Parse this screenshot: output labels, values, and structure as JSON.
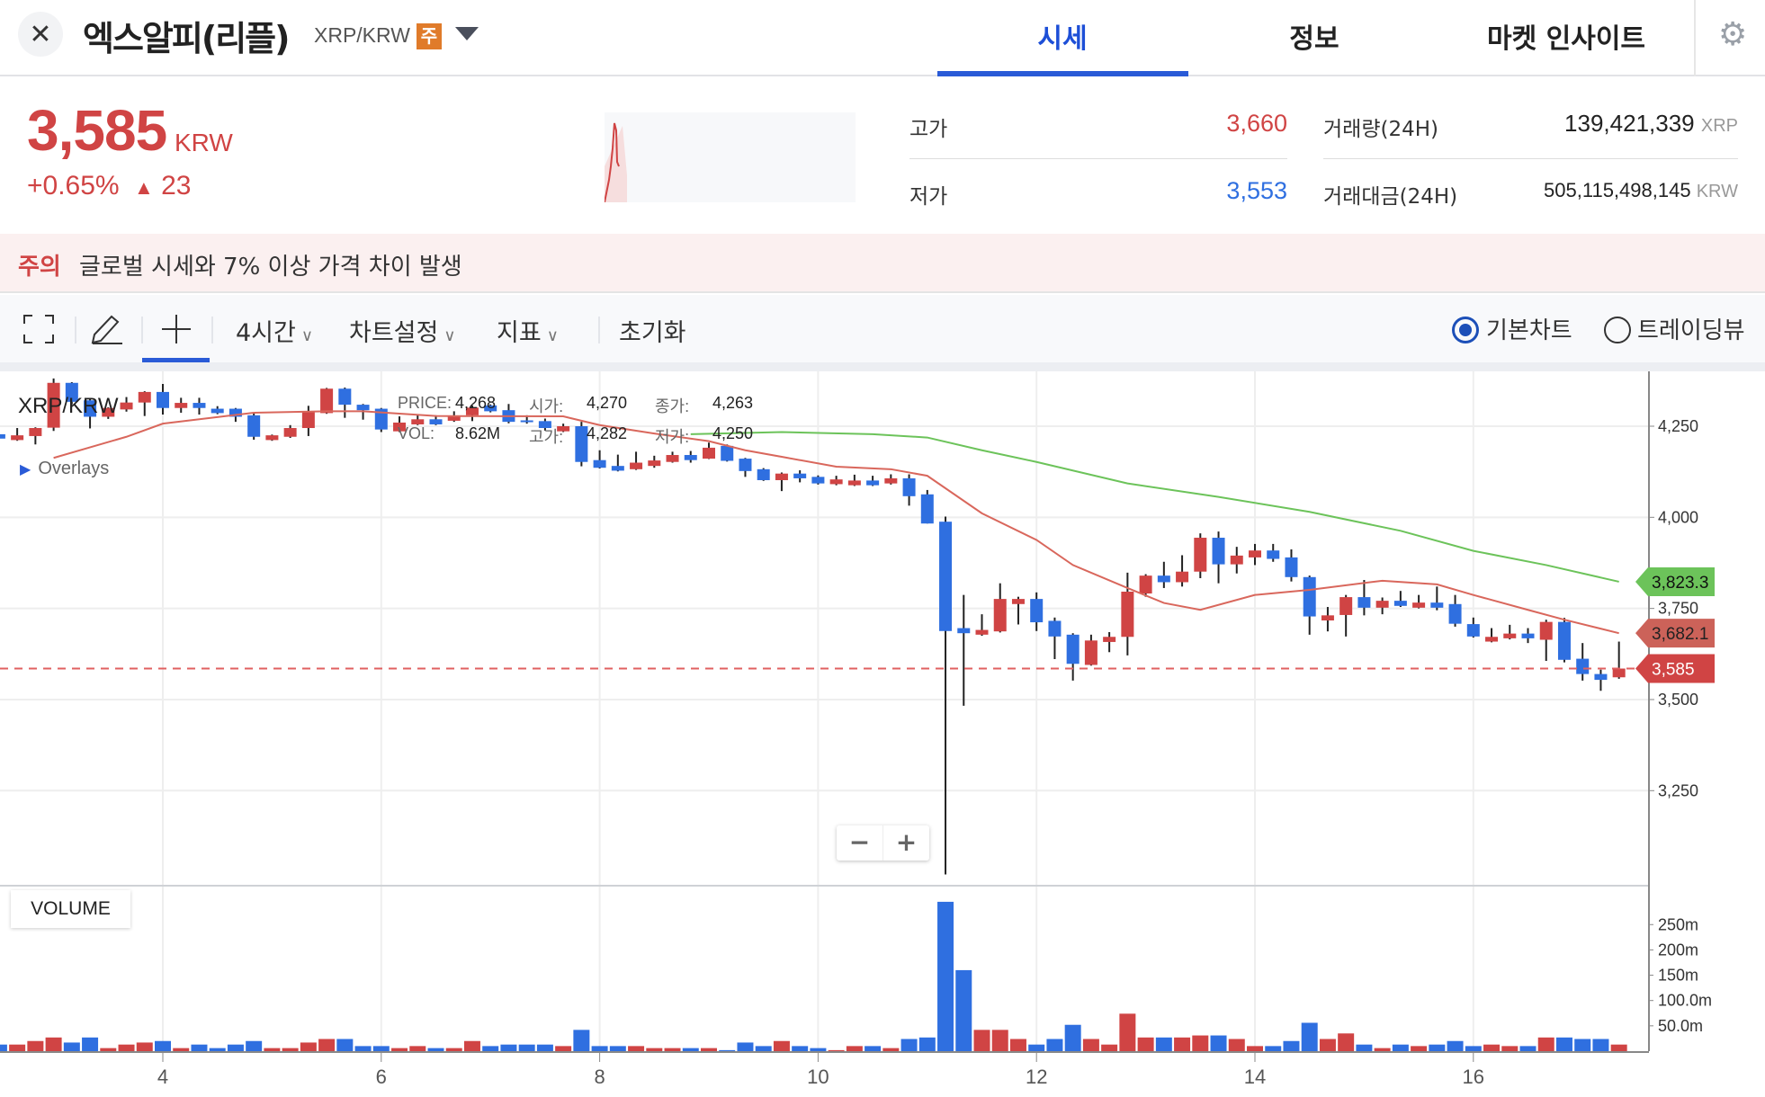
{
  "header": {
    "title": "엑스알피(리플)",
    "pair": "XRP/KRW",
    "badge": "주",
    "close_icon": "close-icon",
    "tabs": [
      {
        "label": "시세",
        "active": true
      },
      {
        "label": "정보"
      },
      {
        "label": "마켓 인사이트"
      }
    ],
    "accent_color": "#2a5bd7"
  },
  "ticker": {
    "price": "3,585",
    "unit": "KRW",
    "change_pct": "+0.65%",
    "change_arrow": "▲",
    "change_abs": "23",
    "color_up": "#d04444",
    "color_down": "#2f6fe0"
  },
  "stats": {
    "high_label": "고가",
    "high_value": "3,660",
    "low_label": "저가",
    "low_value": "3,553",
    "volume_label": "거래량(24H)",
    "volume_value": "139,421,339",
    "volume_unit": "XRP",
    "turnover_label": "거래대금(24H)",
    "turnover_value": "505,115,498,145",
    "turnover_unit": "KRW"
  },
  "warning": {
    "label": "주의",
    "text": "글로벌 시세와 7% 이상 가격 차이 발생"
  },
  "toolbar": {
    "interval": "4시간",
    "chart_settings": "차트설정",
    "indicators": "지표",
    "reset": "초기화",
    "radio_basic": "기본차트",
    "radio_tradingview": "트레이딩뷰",
    "selected": "기본차트"
  },
  "legend": {
    "pair": "XRP/KRW",
    "overlays": "Overlays",
    "tooltip": {
      "price_k": "PRICE:",
      "price_v": "4,268",
      "open_k": "시가:",
      "open_v": "4,270",
      "close_k": "종가:",
      "close_v": "4,263",
      "vol_k": "VOL:",
      "vol_v": "8.62M",
      "high_k": "고가:",
      "high_v": "4,282",
      "low_k": "저가:",
      "low_v": "4,250"
    }
  },
  "zoom": {
    "minus": "−",
    "plus": "+"
  },
  "volume_label": "VOLUME",
  "chart_data": {
    "type": "candlestick",
    "interval": "4시간",
    "x_ticks": [
      4,
      6,
      8,
      10,
      12,
      14,
      16
    ],
    "y_ticks": [
      3250,
      3500,
      3750,
      4000,
      4250
    ],
    "y_tick_labels": [
      "3,250",
      "3,500",
      "3,750",
      "4,000",
      "4,250"
    ],
    "volume_ticks": [
      {
        "v": 250,
        "label": "250m"
      },
      {
        "v": 200,
        "label": "200m"
      },
      {
        "v": 150,
        "label": "150m"
      },
      {
        "v": 100,
        "label": "100.0m"
      },
      {
        "v": 50,
        "label": "50.0m"
      }
    ],
    "grid": true,
    "current_price": {
      "value": 3585,
      "label": "3,585",
      "color": "#d04444"
    },
    "ma_lines": [
      {
        "color": "#d9675c",
        "last_label": "3,682.1",
        "points": [
          [
            "3 00:00",
            4163
          ],
          [
            "3 16:00",
            4221
          ],
          [
            "4 00:00",
            4257
          ],
          [
            "4 20:00",
            4287
          ],
          [
            "5 12:00",
            4291
          ],
          [
            "5 20:00",
            4291
          ],
          [
            "6 12:00",
            4278
          ],
          [
            "7 16:00",
            4277
          ],
          [
            "8 00:00",
            4253
          ],
          [
            "8 12:00",
            4230
          ],
          [
            "9 00:00",
            4209
          ],
          [
            "9 08:00",
            4184
          ],
          [
            "9 16:00",
            4166
          ],
          [
            "10 04:00",
            4139
          ],
          [
            "10 16:00",
            4132
          ],
          [
            "11 00:00",
            4114
          ],
          [
            "11 12:00",
            4011
          ],
          [
            "12 00:00",
            3938
          ],
          [
            "12 08:00",
            3869
          ],
          [
            "12 20:00",
            3806
          ],
          [
            "13 04:00",
            3765
          ],
          [
            "13 12:00",
            3746
          ],
          [
            "14 00:00",
            3787
          ],
          [
            "14 12:00",
            3801
          ],
          [
            "15 04:00",
            3826
          ],
          [
            "15 16:00",
            3816
          ],
          [
            "16 00:00",
            3787
          ],
          [
            "16 12:00",
            3746
          ],
          [
            "16 20:00",
            3719
          ],
          [
            "17 08:00",
            3682.1
          ]
        ]
      },
      {
        "color": "#6cc35a",
        "last_label": "3,823.3",
        "points": [
          [
            "8 20:00",
            4228
          ],
          [
            "9 16:00",
            4234
          ],
          [
            "10 12:00",
            4228
          ],
          [
            "11 00:00",
            4219
          ],
          [
            "11 12:00",
            4184
          ],
          [
            "12 00:00",
            4152
          ],
          [
            "12 20:00",
            4093
          ],
          [
            "13 16:00",
            4056
          ],
          [
            "14 12:00",
            4015
          ],
          [
            "15 08:00",
            3963
          ],
          [
            "16 00:00",
            3908
          ],
          [
            "16 16:00",
            3869
          ],
          [
            "17 08:00",
            3823.3
          ]
        ]
      }
    ],
    "candles_columns": [
      "time",
      "open",
      "high",
      "low",
      "close",
      "volume_m"
    ],
    "candles": [
      [
        "2 12:00",
        4228,
        4230,
        4214,
        4216,
        13
      ],
      [
        "2 16:00",
        4212,
        4245,
        4210,
        4225,
        13
      ],
      [
        "2 20:00",
        4223,
        4247,
        4200,
        4245,
        20
      ],
      [
        "3 00:00",
        4246,
        4381,
        4237,
        4369,
        27
      ],
      [
        "3 04:00",
        4369,
        4371,
        4310,
        4317,
        17
      ],
      [
        "3 08:00",
        4321,
        4325,
        4244,
        4276,
        27
      ],
      [
        "3 12:00",
        4276,
        4302,
        4270,
        4300,
        6
      ],
      [
        "3 16:00",
        4296,
        4330,
        4290,
        4315,
        13
      ],
      [
        "3 20:00",
        4315,
        4346,
        4278,
        4344,
        17
      ],
      [
        "4 00:00",
        4344,
        4366,
        4282,
        4300,
        20
      ],
      [
        "4 04:00",
        4300,
        4328,
        4287,
        4314,
        6
      ],
      [
        "4 08:00",
        4314,
        4328,
        4282,
        4300,
        13
      ],
      [
        "4 12:00",
        4298,
        4305,
        4283,
        4286,
        6
      ],
      [
        "4 16:00",
        4298,
        4300,
        4262,
        4276,
        13
      ],
      [
        "4 20:00",
        4280,
        4285,
        4213,
        4221,
        20
      ],
      [
        "5 00:00",
        4212,
        4227,
        4210,
        4225,
        6
      ],
      [
        "5 04:00",
        4221,
        4253,
        4218,
        4245,
        6
      ],
      [
        "5 08:00",
        4245,
        4306,
        4223,
        4289,
        17
      ],
      [
        "5 12:00",
        4286,
        4355,
        4284,
        4353,
        24
      ],
      [
        "5 16:00",
        4353,
        4356,
        4273,
        4309,
        24
      ],
      [
        "5 20:00",
        4309,
        4311,
        4268,
        4294,
        10
      ],
      [
        "6 00:00",
        4298,
        4300,
        4234,
        4241,
        10
      ],
      [
        "6 04:00",
        4236,
        4277,
        4234,
        4260,
        6
      ],
      [
        "6 08:00",
        4255,
        4280,
        4253,
        4269,
        10
      ],
      [
        "6 12:00",
        4269,
        4280,
        4253,
        4255,
        6
      ],
      [
        "6 16:00",
        4265,
        4291,
        4262,
        4277,
        6
      ],
      [
        "6 20:00",
        4280,
        4307,
        4264,
        4301,
        20
      ],
      [
        "7 00:00",
        4307,
        4310,
        4288,
        4291,
        10
      ],
      [
        "7 04:00",
        4294,
        4311,
        4258,
        4262,
        13
      ],
      [
        "7 08:00",
        4266,
        4280,
        4257,
        4262,
        13
      ],
      [
        "7 12:00",
        4264,
        4271,
        4238,
        4245,
        13
      ],
      [
        "7 16:00",
        4236,
        4257,
        4234,
        4250,
        10
      ],
      [
        "7 20:00",
        4250,
        4262,
        4140,
        4152,
        42
      ],
      [
        "8 00:00",
        4157,
        4184,
        4134,
        4136,
        10
      ],
      [
        "8 04:00",
        4141,
        4172,
        4126,
        4128,
        10
      ],
      [
        "8 08:00",
        4132,
        4180,
        4130,
        4150,
        10
      ],
      [
        "8 12:00",
        4141,
        4169,
        4136,
        4156,
        6
      ],
      [
        "8 16:00",
        4152,
        4180,
        4150,
        4171,
        6
      ],
      [
        "8 20:00",
        4171,
        4182,
        4150,
        4157,
        6
      ],
      [
        "9 00:00",
        4161,
        4205,
        4160,
        4191,
        6
      ],
      [
        "9 04:00",
        4196,
        4200,
        4153,
        4155,
        2
      ],
      [
        "9 08:00",
        4161,
        4163,
        4111,
        4127,
        17
      ],
      [
        "9 12:00",
        4132,
        4135,
        4100,
        4102,
        10
      ],
      [
        "9 16:00",
        4102,
        4123,
        4072,
        4120,
        20
      ],
      [
        "9 20:00",
        4120,
        4129,
        4096,
        4107,
        10
      ],
      [
        "10 00:00",
        4111,
        4115,
        4090,
        4093,
        6
      ],
      [
        "10 04:00",
        4091,
        4114,
        4088,
        4104,
        2
      ],
      [
        "10 08:00",
        4088,
        4117,
        4086,
        4101,
        10
      ],
      [
        "10 12:00",
        4101,
        4114,
        4086,
        4088,
        10
      ],
      [
        "10 16:00",
        4093,
        4118,
        4090,
        4107,
        6
      ],
      [
        "10 20:00",
        4107,
        4118,
        4032,
        4058,
        24
      ],
      [
        "11 00:00",
        4063,
        4075,
        3983,
        3983,
        27
      ],
      [
        "11 04:00",
        3988,
        4002,
        3020,
        3688,
        295
      ],
      [
        "11 08:00",
        3696,
        3787,
        3483,
        3682,
        160
      ],
      [
        "11 12:00",
        3678,
        3734,
        3675,
        3691,
        42
      ],
      [
        "11 16:00",
        3687,
        3819,
        3684,
        3776,
        42
      ],
      [
        "11 20:00",
        3762,
        3782,
        3706,
        3776,
        24
      ],
      [
        "12 00:00",
        3776,
        3794,
        3688,
        3712,
        13
      ],
      [
        "12 04:00",
        3716,
        3725,
        3611,
        3673,
        24
      ],
      [
        "12 08:00",
        3678,
        3682,
        3552,
        3598,
        52
      ],
      [
        "12 12:00",
        3595,
        3678,
        3593,
        3662,
        24
      ],
      [
        "12 16:00",
        3658,
        3685,
        3630,
        3672,
        13
      ],
      [
        "12 20:00",
        3672,
        3848,
        3621,
        3796,
        74
      ],
      [
        "13 00:00",
        3791,
        3844,
        3782,
        3840,
        27
      ],
      [
        "13 04:00",
        3840,
        3878,
        3806,
        3822,
        27
      ],
      [
        "13 08:00",
        3822,
        3896,
        3810,
        3851,
        27
      ],
      [
        "13 12:00",
        3851,
        3956,
        3833,
        3944,
        31
      ],
      [
        "13 16:00",
        3944,
        3961,
        3819,
        3871,
        31
      ],
      [
        "13 20:00",
        3871,
        3919,
        3846,
        3895,
        24
      ],
      [
        "14 00:00",
        3890,
        3927,
        3869,
        3909,
        10
      ],
      [
        "14 04:00",
        3909,
        3927,
        3878,
        3886,
        10
      ],
      [
        "14 08:00",
        3890,
        3912,
        3824,
        3836,
        20
      ],
      [
        "14 12:00",
        3836,
        3840,
        3678,
        3728,
        56
      ],
      [
        "14 16:00",
        3717,
        3754,
        3687,
        3731,
        24
      ],
      [
        "14 20:00",
        3732,
        3787,
        3673,
        3781,
        35
      ],
      [
        "15 00:00",
        3781,
        3828,
        3731,
        3752,
        13
      ],
      [
        "15 04:00",
        3752,
        3780,
        3734,
        3771,
        6
      ],
      [
        "15 08:00",
        3771,
        3798,
        3754,
        3757,
        13
      ],
      [
        "15 12:00",
        3752,
        3787,
        3750,
        3766,
        10
      ],
      [
        "15 16:00",
        3766,
        3810,
        3745,
        3752,
        13
      ],
      [
        "15 20:00",
        3762,
        3787,
        3700,
        3708,
        20
      ],
      [
        "16 00:00",
        3707,
        3725,
        3670,
        3673,
        10
      ],
      [
        "16 04:00",
        3659,
        3696,
        3657,
        3672,
        13
      ],
      [
        "16 08:00",
        3668,
        3705,
        3665,
        3681,
        10
      ],
      [
        "16 12:00",
        3681,
        3696,
        3655,
        3668,
        10
      ],
      [
        "16 16:00",
        3664,
        3719,
        3606,
        3713,
        27
      ],
      [
        "16 20:00",
        3713,
        3724,
        3602,
        3609,
        27
      ],
      [
        "17 00:00",
        3612,
        3655,
        3552,
        3570,
        24
      ],
      [
        "17 04:00",
        3570,
        3582,
        3524,
        3554,
        24
      ],
      [
        "17 08:00",
        3561,
        3659,
        3557,
        3585,
        13
      ]
    ]
  }
}
